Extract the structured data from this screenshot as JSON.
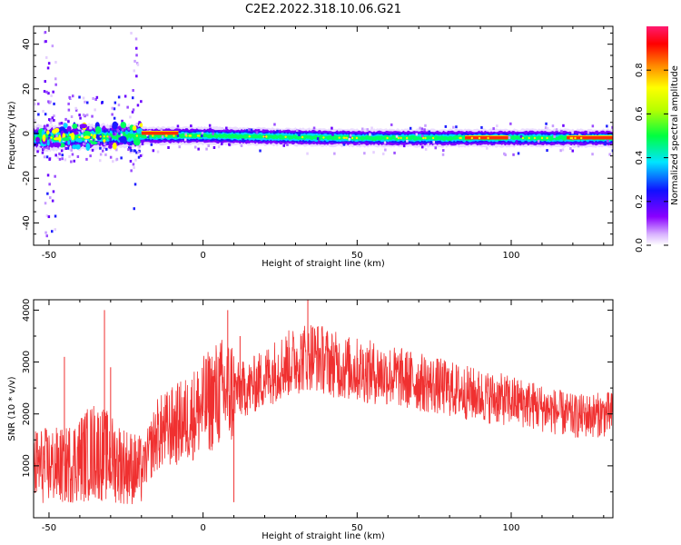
{
  "title": "C2E2.2022.318.10.06.G21",
  "chart_data": [
    {
      "type": "heatmap",
      "xlabel": "Height of straight line (km)",
      "ylabel": "Frequency (Hz)",
      "xlim": [
        -55,
        133
      ],
      "ylim": [
        -50,
        48
      ],
      "xticks": [
        -50,
        0,
        50,
        100
      ],
      "yticks": [
        -40,
        -20,
        0,
        20,
        40
      ],
      "colorbar": {
        "label": "Normalized spectral amplitude",
        "range": [
          0,
          1
        ],
        "ticks": [
          "0.0",
          "0.2",
          "0.4",
          "0.6",
          "0.8"
        ],
        "colormap": "rainbow (white-purple-blue-cyan-green-yellow-orange-red-pink)"
      },
      "ridge": [
        {
          "x": -55,
          "y": -2
        },
        {
          "x": -20,
          "y": -1
        },
        {
          "x": 0,
          "y": -1
        },
        {
          "x": 50,
          "y": -2
        },
        {
          "x": 85,
          "y": -2
        },
        {
          "x": 100,
          "y": -2
        },
        {
          "x": 133,
          "y": -2
        }
      ],
      "hot_segments": [
        {
          "x0": -20,
          "x1": -8,
          "y": 0
        },
        {
          "x0": 85,
          "x1": 99,
          "y": -2
        },
        {
          "x0": 118,
          "x1": 133,
          "y": -2
        }
      ],
      "grid": false
    },
    {
      "type": "line",
      "xlabel": "Height of straight line (km)",
      "ylabel": "SNR (10 * v/v)",
      "xlim": [
        -55,
        133
      ],
      "ylim": [
        0,
        4200
      ],
      "xticks": [
        -50,
        0,
        50,
        100
      ],
      "yticks": [
        1000,
        2000,
        3000,
        4000
      ],
      "series_color": "#f03030",
      "envelope": [
        {
          "x": -55,
          "y": 1000
        },
        {
          "x": -45,
          "y": 1000
        },
        {
          "x": -35,
          "y": 1300
        },
        {
          "x": -25,
          "y": 1000
        },
        {
          "x": -20,
          "y": 900
        },
        {
          "x": -15,
          "y": 1600
        },
        {
          "x": -5,
          "y": 1900
        },
        {
          "x": 5,
          "y": 2400
        },
        {
          "x": 15,
          "y": 2500
        },
        {
          "x": 25,
          "y": 2900
        },
        {
          "x": 35,
          "y": 3150
        },
        {
          "x": 45,
          "y": 2900
        },
        {
          "x": 60,
          "y": 2750
        },
        {
          "x": 75,
          "y": 2550
        },
        {
          "x": 90,
          "y": 2350
        },
        {
          "x": 105,
          "y": 2200
        },
        {
          "x": 120,
          "y": 1950
        },
        {
          "x": 133,
          "y": 2000
        }
      ],
      "spikes": [
        {
          "x": -32,
          "y": 4000
        },
        {
          "x": -45,
          "y": 3100
        },
        {
          "x": -30,
          "y": 2900
        },
        {
          "x": 8,
          "y": 4000
        },
        {
          "x": 10,
          "y": 300
        },
        {
          "x": 34,
          "y": 4200
        },
        {
          "x": 12,
          "y": 3500
        }
      ],
      "grid": false
    }
  ]
}
